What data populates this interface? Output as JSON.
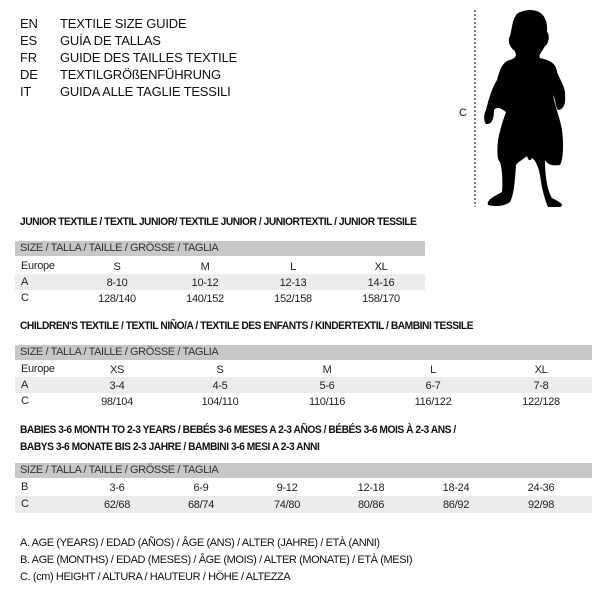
{
  "languages": [
    {
      "code": "EN",
      "title": "TEXTILE SIZE GUIDE"
    },
    {
      "code": "ES",
      "title": "GUÍA DE TALLAS"
    },
    {
      "code": "FR",
      "title": "GUIDE DES TAILLES TEXTILE"
    },
    {
      "code": "DE",
      "title": "TEXTILGRÖßENFÜHRUNG"
    },
    {
      "code": "IT",
      "title": "GUIDA ALLE TAGLIE TESSILI"
    }
  ],
  "figure": {
    "measure_label": "C"
  },
  "junior": {
    "title": "JUNIOR TEXTILE / TEXTIL JUNIOR/ TEXTILE JUNIOR / JUNIORTEXTIL / JUNIOR TESSILE",
    "header": "SIZE / TALLA / TAILLE / GRÖSSE / TAGLIA",
    "rows": [
      {
        "label": "Europe",
        "values": [
          "S",
          "M",
          "L",
          "XL"
        ]
      },
      {
        "label": "A",
        "values": [
          "8-10",
          "10-12",
          "12-13",
          "14-16"
        ]
      },
      {
        "label": "C",
        "values": [
          "128/140",
          "140/152",
          "152/158",
          "158/170"
        ]
      }
    ]
  },
  "children": {
    "title": "CHILDREN'S TEXTILE / TEXTIL NIÑO/A / TEXTILE DES ENFANTS / KINDERTEXTIL / BAMBINI TESSILE",
    "header": "SIZE / TALLA / TAILLE / GRÖSSE / TAGLIA",
    "rows": [
      {
        "label": "Europe",
        "values": [
          "XS",
          "S",
          "M",
          "L",
          "XL"
        ]
      },
      {
        "label": "A",
        "values": [
          "3-4",
          "4-5",
          "5-6",
          "6-7",
          "7-8"
        ]
      },
      {
        "label": "C",
        "values": [
          "98/104",
          "104/110",
          "110/116",
          "116/122",
          "122/128"
        ]
      }
    ]
  },
  "babies": {
    "title_line1": "BABIES 3-6 MONTH TO 2-3 YEARS / BEBÉS 3-6 MESES A 2-3 AÑOS / BÉBÉS 3-6 MOIS À 2-3 ANS /",
    "title_line2": "BABYS 3-6 MONATE BIS 2-3 JAHRE / BAMBINI 3-6 MESI A 2-3 ANNI",
    "header": "SIZE / TALLA / TAILLE / GRÖSSE / TAGLIA",
    "rows": [
      {
        "label": "B",
        "values": [
          "3-6",
          "6-9",
          "9-12",
          "12-18",
          "18-24",
          "24-36"
        ]
      },
      {
        "label": "C",
        "values": [
          "62/68",
          "68/74",
          "74/80",
          "80/86",
          "86/92",
          "92/98"
        ]
      }
    ]
  },
  "legend": [
    "A. AGE (YEARS) / EDAD (AÑOS) / ÂGE (ANS) / ALTER (JAHRE) / ETÀ (ANNI)",
    "B. AGE (MONTHS) / EDAD (MESES) / ÂGE (MOIS) / ALTER (MONATE) / ETÀ (MESI)",
    "C. (cm) HEIGHT / ALTURA / HAUTEUR / HÖHE / ALTEZZA"
  ]
}
